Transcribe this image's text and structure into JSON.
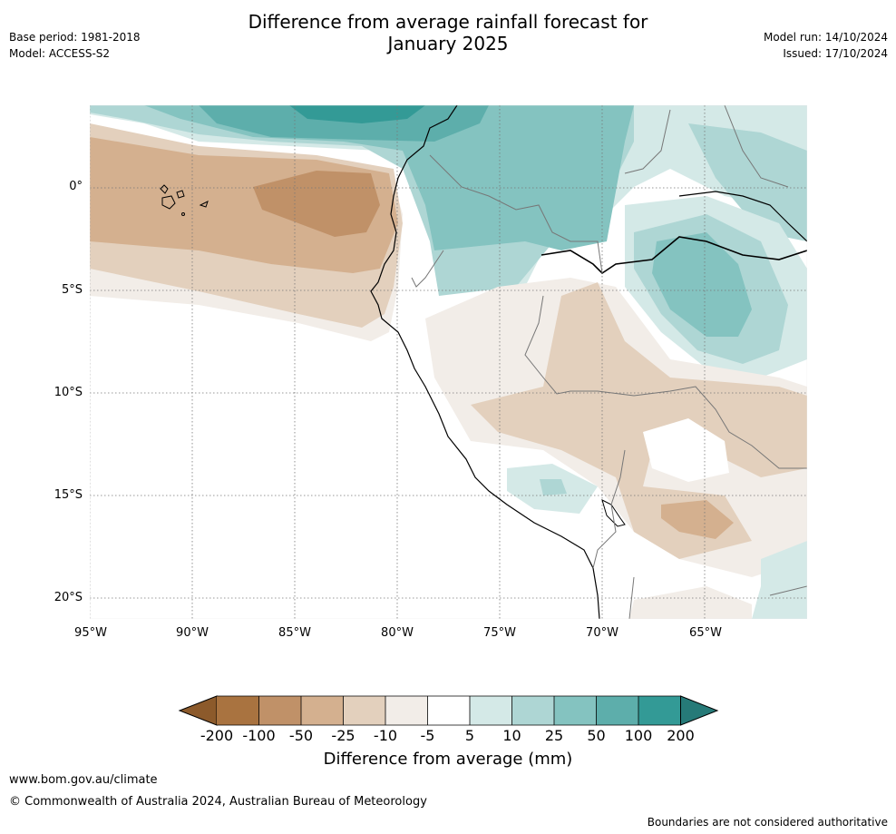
{
  "header": {
    "title_line1": "Difference from average rainfall forecast for",
    "title_line2": "January 2025",
    "base_period": "Base period: 1981-2018",
    "model": "Model: ACCESS-S2",
    "model_run": "Model run: 14/10/2024",
    "issued": "Issued: 17/10/2024"
  },
  "map": {
    "lat_labels": [
      "0°",
      "5°S",
      "10°S",
      "15°S",
      "20°S"
    ],
    "lon_labels": [
      "95°W",
      "90°W",
      "85°W",
      "80°W",
      "75°W",
      "70°W",
      "65°W"
    ],
    "colors": {
      "dry_200": "#8c5a2b",
      "dry_100": "#a97340",
      "dry_50": "#c09168",
      "dry_25": "#d4b08f",
      "dry_10": "#e3d0bd",
      "dry_5": "#f2ede8",
      "neutral": "#ffffff",
      "wet_5": "#d4e9e7",
      "wet_10": "#aed6d4",
      "wet_25": "#84c3c0",
      "wet_50": "#5daeab",
      "wet_100": "#339a96",
      "wet_200": "#267a78"
    }
  },
  "colorbar": {
    "labels": [
      "-200",
      "-100",
      "-50",
      "-25",
      "-10",
      "-5",
      "5",
      "10",
      "25",
      "50",
      "100",
      "200"
    ],
    "title": "Difference from average (mm)"
  },
  "footer": {
    "website": "www.bom.gov.au/climate",
    "copyright": "© Commonwealth of Australia 2024, Australian Bureau of Meteorology",
    "disclaimer": "Boundaries are not considered authoritative"
  }
}
